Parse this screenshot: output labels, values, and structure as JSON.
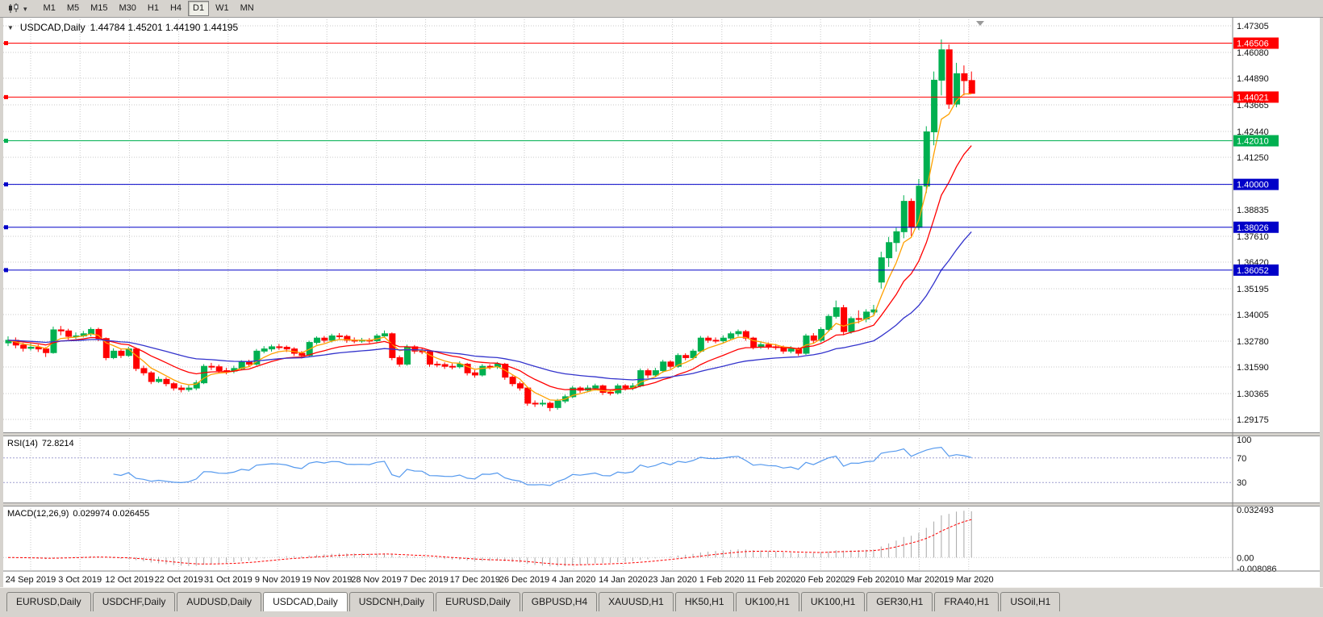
{
  "toolbar": {
    "dropdown_icon": "▾",
    "timeframes": [
      "M1",
      "M5",
      "M15",
      "M30",
      "H1",
      "H4",
      "D1",
      "W1",
      "MN"
    ],
    "active_timeframe": "D1"
  },
  "chart": {
    "collapse_icon": "▼",
    "symbol": "USDCAD,Daily",
    "ohlc_text": "1.44784 1.45201 1.44190 1.44195",
    "price_axis": [
      "1.47305",
      "1.46080",
      "1.44890",
      "1.43665",
      "1.42440",
      "1.41250",
      "1.40000",
      "1.38835",
      "1.37610",
      "1.36420",
      "1.35195",
      "1.34005",
      "1.32780",
      "1.31590",
      "1.30365",
      "1.29175"
    ],
    "rsi_axis": [
      "100",
      "70",
      "30"
    ],
    "macd_axis": [
      "0.032493",
      "0.00",
      "-0.008086"
    ],
    "date_axis": [
      "24 Sep 2019",
      "3 Oct 2019",
      "12 Oct 2019",
      "22 Oct 2019",
      "31 Oct 2019",
      "9 Nov 2019",
      "19 Nov 2019",
      "28 Nov 2019",
      "7 Dec 2019",
      "17 Dec 2019",
      "26 Dec 2019",
      "4 Jan 2020",
      "14 Jan 2020",
      "23 Jan 2020",
      "1 Feb 2020",
      "11 Feb 2020",
      "20 Feb 2020",
      "29 Feb 2020",
      "10 Mar 2020",
      "19 Mar 2020"
    ]
  },
  "indicators": {
    "rsi": {
      "name": "RSI(14)",
      "value": "72.8214"
    },
    "macd": {
      "name": "MACD(12,26,9)",
      "value": "0.029974 0.026455"
    }
  },
  "tabs": {
    "active_index": 3,
    "items": [
      {
        "label": "EURUSD,Daily"
      },
      {
        "label": "USDCHF,Daily"
      },
      {
        "label": "AUDUSD,Daily"
      },
      {
        "label": "USDCAD,Daily"
      },
      {
        "label": "USDCNH,Daily"
      },
      {
        "label": "EURUSD,Daily"
      },
      {
        "label": "GBPUSD,H4"
      },
      {
        "label": "XAUUSD,H1"
      },
      {
        "label": "HK50,H1"
      },
      {
        "label": "UK100,H1"
      },
      {
        "label": "UK100,H1"
      },
      {
        "label": "GER30,H1"
      },
      {
        "label": "FRA40,H1"
      },
      {
        "label": "USOil,H1"
      }
    ]
  },
  "chart_data": {
    "type": "candlestick",
    "symbol": "USDCAD",
    "timeframe": "Daily",
    "last_bar": {
      "open": 1.44784,
      "high": 1.45201,
      "low": 1.4419,
      "close": 1.44195
    },
    "ylim": [
      1.29175,
      1.47305
    ],
    "colors": {
      "up": "#00B050",
      "down": "#FF0000",
      "background": "#FFFFFF",
      "grid": "#C9C9C9"
    },
    "x_labels": [
      "24 Sep 2019",
      "3 Oct 2019",
      "12 Oct 2019",
      "22 Oct 2019",
      "31 Oct 2019",
      "9 Nov 2019",
      "19 Nov 2019",
      "28 Nov 2019",
      "7 Dec 2019",
      "17 Dec 2019",
      "26 Dec 2019",
      "4 Jan 2020",
      "14 Jan 2020",
      "23 Jan 2020",
      "1 Feb 2020",
      "11 Feb 2020",
      "20 Feb 2020",
      "29 Feb 2020",
      "10 Mar 2020",
      "19 Mar 2020"
    ],
    "hlines": [
      {
        "label": "1.46506",
        "value": 1.46506,
        "color": "#FF0000"
      },
      {
        "label": "1.44021",
        "value": 1.44021,
        "color": "#FF0000"
      },
      {
        "label": "1.42010",
        "value": 1.4201,
        "color": "#00B050"
      },
      {
        "label": "1.40000",
        "value": 1.4,
        "color": "#0000C8"
      },
      {
        "label": "1.38026",
        "value": 1.38026,
        "color": "#0000C8"
      },
      {
        "label": "1.36052",
        "value": 1.36052,
        "color": "#0000C8"
      }
    ],
    "overlays": [
      {
        "name": "ma-fast",
        "type": "ema",
        "period": 5,
        "color": "#FFA000"
      },
      {
        "name": "ma-mid",
        "type": "ema",
        "period": 13,
        "color": "#FF0000"
      },
      {
        "name": "ma-slow",
        "type": "ema",
        "period": 34,
        "color": "#3333CC"
      }
    ],
    "indicators": {
      "rsi": {
        "period": 14,
        "current": 72.8214,
        "levels": [
          70,
          30
        ],
        "range": [
          0,
          100
        ],
        "color": "#5599EE"
      },
      "macd": {
        "fast": 12,
        "slow": 26,
        "signal_period": 9,
        "current": 0.029974,
        "signal_current": 0.026455,
        "range": [
          -0.008086,
          0.032493
        ],
        "histogram_color": "#A8A8A8",
        "signal_color": "#FF0000"
      }
    },
    "ohlc": [
      [
        1.327,
        1.33,
        1.3255,
        1.3282
      ],
      [
        1.3282,
        1.3295,
        1.3245,
        1.326
      ],
      [
        1.326,
        1.327,
        1.323,
        1.3245
      ],
      [
        1.3245,
        1.3268,
        1.3235,
        1.325
      ],
      [
        1.325,
        1.3262,
        1.3228,
        1.3242
      ],
      [
        1.3242,
        1.325,
        1.3205,
        1.3225
      ],
      [
        1.3225,
        1.3345,
        1.322,
        1.333
      ],
      [
        1.333,
        1.3348,
        1.3305,
        1.3325
      ],
      [
        1.3325,
        1.3335,
        1.3285,
        1.33
      ],
      [
        1.33,
        1.3318,
        1.3288,
        1.3302
      ],
      [
        1.3302,
        1.3325,
        1.3295,
        1.3312
      ],
      [
        1.3312,
        1.3342,
        1.33,
        1.3332
      ],
      [
        1.3332,
        1.334,
        1.3278,
        1.329
      ],
      [
        1.329,
        1.3295,
        1.319,
        1.3202
      ],
      [
        1.3202,
        1.3245,
        1.3195,
        1.3232
      ],
      [
        1.3232,
        1.324,
        1.32,
        1.3212
      ],
      [
        1.3212,
        1.3252,
        1.3205,
        1.3242
      ],
      [
        1.3242,
        1.3248,
        1.314,
        1.3152
      ],
      [
        1.3152,
        1.3165,
        1.312,
        1.3132
      ],
      [
        1.3132,
        1.314,
        1.308,
        1.3092
      ],
      [
        1.3092,
        1.3115,
        1.3085,
        1.3102
      ],
      [
        1.3102,
        1.3112,
        1.307,
        1.3082
      ],
      [
        1.3082,
        1.309,
        1.305,
        1.3062
      ],
      [
        1.3062,
        1.3075,
        1.3042,
        1.3055
      ],
      [
        1.3055,
        1.3075,
        1.3045,
        1.3062
      ],
      [
        1.3062,
        1.3098,
        1.3052,
        1.3086
      ],
      [
        1.3086,
        1.3172,
        1.308,
        1.3162
      ],
      [
        1.3162,
        1.3178,
        1.3145,
        1.316
      ],
      [
        1.316,
        1.317,
        1.313,
        1.3142
      ],
      [
        1.3142,
        1.3155,
        1.3125,
        1.314
      ],
      [
        1.314,
        1.3165,
        1.313,
        1.3152
      ],
      [
        1.3152,
        1.319,
        1.3145,
        1.3182
      ],
      [
        1.3182,
        1.3192,
        1.316,
        1.3172
      ],
      [
        1.3172,
        1.3242,
        1.3165,
        1.3232
      ],
      [
        1.3232,
        1.3255,
        1.3222,
        1.3242
      ],
      [
        1.3242,
        1.3262,
        1.323,
        1.3252
      ],
      [
        1.3252,
        1.3265,
        1.3238,
        1.325
      ],
      [
        1.325,
        1.3258,
        1.3228,
        1.3242
      ],
      [
        1.3242,
        1.325,
        1.321,
        1.3222
      ],
      [
        1.3222,
        1.3232,
        1.3198,
        1.3212
      ],
      [
        1.3212,
        1.328,
        1.3205,
        1.3272
      ],
      [
        1.3272,
        1.33,
        1.3262,
        1.3292
      ],
      [
        1.3292,
        1.3302,
        1.327,
        1.3282
      ],
      [
        1.3282,
        1.3312,
        1.3272,
        1.3302
      ],
      [
        1.3302,
        1.3315,
        1.3288,
        1.33
      ],
      [
        1.33,
        1.3308,
        1.327,
        1.3282
      ],
      [
        1.3282,
        1.3295,
        1.3268,
        1.328
      ],
      [
        1.328,
        1.3293,
        1.327,
        1.3282
      ],
      [
        1.3282,
        1.3292,
        1.3268,
        1.328
      ],
      [
        1.328,
        1.3312,
        1.3272,
        1.3302
      ],
      [
        1.3302,
        1.3327,
        1.3295,
        1.3312
      ],
      [
        1.3312,
        1.3318,
        1.319,
        1.3202
      ],
      [
        1.3202,
        1.3212,
        1.316,
        1.3172
      ],
      [
        1.3172,
        1.3262,
        1.3165,
        1.3252
      ],
      [
        1.3252,
        1.326,
        1.322,
        1.3232
      ],
      [
        1.3232,
        1.3245,
        1.3218,
        1.323
      ],
      [
        1.323,
        1.3238,
        1.316,
        1.3172
      ],
      [
        1.3172,
        1.3185,
        1.3158,
        1.317
      ],
      [
        1.317,
        1.318,
        1.315,
        1.3162
      ],
      [
        1.3162,
        1.3175,
        1.3148,
        1.316
      ],
      [
        1.316,
        1.3185,
        1.3152,
        1.3172
      ],
      [
        1.3172,
        1.3178,
        1.312,
        1.3132
      ],
      [
        1.3132,
        1.3145,
        1.311,
        1.3122
      ],
      [
        1.3122,
        1.3172,
        1.3115,
        1.3162
      ],
      [
        1.3162,
        1.3172,
        1.3148,
        1.316
      ],
      [
        1.316,
        1.3182,
        1.315,
        1.3172
      ],
      [
        1.3172,
        1.3178,
        1.31,
        1.3112
      ],
      [
        1.3112,
        1.312,
        1.307,
        1.3082
      ],
      [
        1.3082,
        1.3092,
        1.305,
        1.3062
      ],
      [
        1.3062,
        1.3068,
        1.298,
        1.2992
      ],
      [
        1.2992,
        1.3005,
        1.2975,
        1.299
      ],
      [
        1.299,
        1.3008,
        1.2978,
        1.2992
      ],
      [
        1.2992,
        1.3,
        1.2955,
        1.2972
      ],
      [
        1.2972,
        1.3012,
        1.2962,
        1.3002
      ],
      [
        1.3002,
        1.3032,
        1.2992,
        1.3022
      ],
      [
        1.3022,
        1.3072,
        1.3015,
        1.3062
      ],
      [
        1.3062,
        1.307,
        1.304,
        1.3052
      ],
      [
        1.3052,
        1.3075,
        1.3042,
        1.3062
      ],
      [
        1.3062,
        1.3082,
        1.305,
        1.3072
      ],
      [
        1.3072,
        1.3078,
        1.303,
        1.3042
      ],
      [
        1.3042,
        1.3055,
        1.3028,
        1.304
      ],
      [
        1.304,
        1.3082,
        1.3032,
        1.3072
      ],
      [
        1.3072,
        1.308,
        1.305,
        1.3062
      ],
      [
        1.3062,
        1.3085,
        1.3052,
        1.3072
      ],
      [
        1.3072,
        1.3152,
        1.3065,
        1.3142
      ],
      [
        1.3142,
        1.3152,
        1.3108,
        1.3122
      ],
      [
        1.3122,
        1.3155,
        1.3112,
        1.3142
      ],
      [
        1.3142,
        1.3192,
        1.3132,
        1.3182
      ],
      [
        1.3182,
        1.319,
        1.315,
        1.3162
      ],
      [
        1.3162,
        1.3222,
        1.3155,
        1.3212
      ],
      [
        1.3212,
        1.3222,
        1.319,
        1.3202
      ],
      [
        1.3202,
        1.3242,
        1.3192,
        1.3232
      ],
      [
        1.3232,
        1.3302,
        1.3225,
        1.3292
      ],
      [
        1.3292,
        1.3302,
        1.327,
        1.3282
      ],
      [
        1.3282,
        1.3295,
        1.3268,
        1.328
      ],
      [
        1.328,
        1.3305,
        1.327,
        1.3292
      ],
      [
        1.3292,
        1.3322,
        1.3282,
        1.3312
      ],
      [
        1.3312,
        1.3332,
        1.33,
        1.3322
      ],
      [
        1.3322,
        1.333,
        1.328,
        1.3292
      ],
      [
        1.3292,
        1.3298,
        1.324,
        1.3252
      ],
      [
        1.3252,
        1.3275,
        1.3242,
        1.3262
      ],
      [
        1.3262,
        1.3272,
        1.324,
        1.3252
      ],
      [
        1.3252,
        1.3265,
        1.3238,
        1.325
      ],
      [
        1.325,
        1.3258,
        1.322,
        1.3232
      ],
      [
        1.3232,
        1.3255,
        1.3222,
        1.3242
      ],
      [
        1.3242,
        1.325,
        1.321,
        1.3222
      ],
      [
        1.3222,
        1.3312,
        1.3215,
        1.3302
      ],
      [
        1.3302,
        1.3315,
        1.3268,
        1.3282
      ],
      [
        1.3282,
        1.3342,
        1.3272,
        1.3332
      ],
      [
        1.3332,
        1.3402,
        1.3322,
        1.3392
      ],
      [
        1.3392,
        1.3465,
        1.3382,
        1.3432
      ],
      [
        1.3432,
        1.3445,
        1.3305,
        1.3322
      ],
      [
        1.3322,
        1.3392,
        1.3312,
        1.3382
      ],
      [
        1.3382,
        1.342,
        1.336,
        1.338
      ],
      [
        1.338,
        1.3425,
        1.3365,
        1.3412
      ],
      [
        1.3412,
        1.3445,
        1.34,
        1.3422
      ],
      [
        1.355,
        1.369,
        1.352,
        1.3662
      ],
      [
        1.3662,
        1.3758,
        1.362,
        1.3732
      ],
      [
        1.3732,
        1.38,
        1.369,
        1.3782
      ],
      [
        1.3782,
        1.395,
        1.3752,
        1.3922
      ],
      [
        1.3922,
        1.3935,
        1.3762,
        1.3802
      ],
      [
        1.3802,
        1.4025,
        1.379,
        1.3992
      ],
      [
        1.3992,
        1.4268,
        1.396,
        1.4242
      ],
      [
        1.4242,
        1.452,
        1.418,
        1.448
      ],
      [
        1.448,
        1.4668,
        1.441,
        1.462
      ],
      [
        1.462,
        1.4645,
        1.4348,
        1.437
      ],
      [
        1.437,
        1.456,
        1.4355,
        1.451
      ],
      [
        1.451,
        1.4548,
        1.441,
        1.4478
      ],
      [
        1.44784,
        1.45201,
        1.4419,
        1.44195
      ]
    ]
  }
}
